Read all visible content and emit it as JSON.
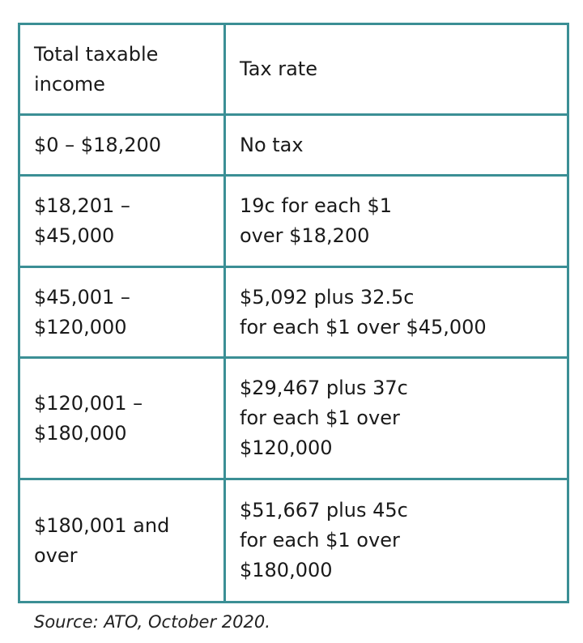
{
  "table": {
    "rows": [
      [
        [
          "Total taxable",
          "income"
        ],
        [
          "Tax rate"
        ]
      ],
      [
        [
          "$0 – $18,200"
        ],
        [
          "No tax"
        ]
      ],
      [
        [
          "$18,201 –",
          "$45,000"
        ],
        [
          "19c for each $1",
          "over $18,200"
        ]
      ],
      [
        [
          "$45,001 –",
          "$120,000"
        ],
        [
          "$5,092 plus 32.5c",
          "for each $1 over $45,000"
        ]
      ],
      [
        [
          "$120,001 –",
          "$180,000"
        ],
        [
          "$29,467 plus 37c",
          "for each $1 over",
          "$120,000"
        ]
      ],
      [
        [
          "$180,001 and",
          "over"
        ],
        [
          "$51,667 plus 45c",
          "for each $1 over",
          "$180,000"
        ]
      ]
    ]
  },
  "source": "Source: ATO, October 2020."
}
